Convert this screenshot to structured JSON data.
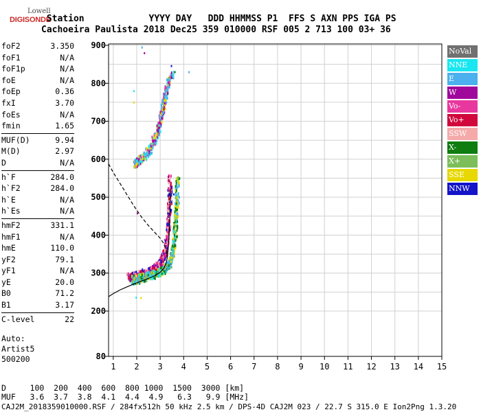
{
  "logo": {
    "line1": "Lowell",
    "line2": "DIGISONDE"
  },
  "header": {
    "labels": [
      "Station",
      "YYYY",
      "DAY",
      "DDD",
      "HHMMSS",
      "P1",
      "FFS",
      "S",
      "AXN",
      "PPS",
      "IGA",
      "PS"
    ],
    "values": [
      "Cachoeira Paulista",
      "2018",
      "Dec25",
      "359",
      "010000",
      "RSF",
      "005",
      "2",
      "713",
      "100",
      "03+",
      "36"
    ]
  },
  "parameters": [
    {
      "group": [
        {
          "name": "foF2",
          "value": "3.350"
        },
        {
          "name": "foF1",
          "value": "N/A"
        },
        {
          "name": "foF1p",
          "value": "N/A"
        },
        {
          "name": "foE",
          "value": "N/A"
        },
        {
          "name": "foEp",
          "value": "0.36"
        },
        {
          "name": "fxI",
          "value": "3.70"
        },
        {
          "name": "foEs",
          "value": "N/A"
        },
        {
          "name": "fmin",
          "value": "1.65"
        }
      ]
    },
    {
      "group": [
        {
          "name": "MUF(D)",
          "value": "9.94"
        },
        {
          "name": "M(D)",
          "value": "2.97"
        },
        {
          "name": "D",
          "value": "N/A"
        }
      ]
    },
    {
      "group": [
        {
          "name": "h`F",
          "value": "284.0"
        },
        {
          "name": "h`F2",
          "value": "284.0"
        },
        {
          "name": "h`E",
          "value": "N/A"
        },
        {
          "name": "h`Es",
          "value": "N/A"
        }
      ]
    },
    {
      "group": [
        {
          "name": "hmF2",
          "value": "331.1"
        },
        {
          "name": "hmF1",
          "value": "N/A"
        },
        {
          "name": "hmE",
          "value": "110.0"
        },
        {
          "name": "yF2",
          "value": "79.1"
        },
        {
          "name": "yF1",
          "value": "N/A"
        },
        {
          "name": "yE",
          "value": "20.0"
        },
        {
          "name": "B0",
          "value": "71.2"
        },
        {
          "name": "B1",
          "value": "3.17"
        }
      ]
    },
    {
      "group": [
        {
          "name": "C-level",
          "value": "22"
        }
      ]
    }
  ],
  "autoscaling": [
    "Auto:",
    "Artist5",
    "500200"
  ],
  "legend": [
    {
      "label": "NoVal",
      "color": "#707070"
    },
    {
      "label": "NNE",
      "color": "#19e6f0"
    },
    {
      "label": "E",
      "color": "#4ab0ee"
    },
    {
      "label": "W",
      "color": "#a0089c"
    },
    {
      "label": "Vo-",
      "color": "#e8389e"
    },
    {
      "label": "Vo+",
      "color": "#d0083c"
    },
    {
      "label": "SSW",
      "color": "#f5a9a9"
    },
    {
      "label": "X-",
      "color": "#0f7d0f"
    },
    {
      "label": "X+",
      "color": "#7cbe5a"
    },
    {
      "label": "SSE",
      "color": "#e6d800"
    },
    {
      "label": "NNW",
      "color": "#1414c8"
    }
  ],
  "mufTable": {
    "dLabel": "D",
    "mufLabel": "MUF",
    "distances": [
      "100",
      "200",
      "400",
      "600",
      "800",
      "1000",
      "1500",
      "3000"
    ],
    "distUnit": "[km]",
    "mufs": [
      "3.6",
      "3.7",
      "3.8",
      "4.1",
      "4.4",
      "4.9",
      "6.3",
      "9.9"
    ],
    "mufUnit": "[MHz]"
  },
  "footer": "CAJ2M_2018359010000.RSF / 284fx512h 50 kHz 2.5 km / DPS-4D CAJ2M 023 / 22.7 S 315.0 E Ion2Png 1.3.20",
  "chart_data": {
    "type": "scatter",
    "xlim": [
      0.8,
      15
    ],
    "ylim": [
      80,
      900
    ],
    "xticks": [
      1,
      2,
      3,
      4,
      5,
      6,
      7,
      8,
      9,
      10,
      11,
      12,
      13,
      14,
      15
    ],
    "yticks": [
      80,
      200,
      300,
      400,
      500,
      600,
      700,
      800,
      900
    ],
    "xlabel": "",
    "ylabel": "",
    "grid": true,
    "echo_traces": [
      {
        "name": "O-trace F2 (lower)",
        "colors": [
          "#a0089c",
          "#e8389e",
          "#d0083c",
          "#1414c8",
          "#f5a9a9"
        ],
        "points": [
          [
            1.65,
            292
          ],
          [
            1.8,
            294
          ],
          [
            2.0,
            297
          ],
          [
            2.2,
            300
          ],
          [
            2.4,
            304
          ],
          [
            2.6,
            310
          ],
          [
            2.8,
            318
          ],
          [
            3.0,
            330
          ],
          [
            3.1,
            340
          ],
          [
            3.2,
            360
          ],
          [
            3.3,
            400
          ],
          [
            3.35,
            450
          ],
          [
            3.38,
            500
          ],
          [
            3.4,
            560
          ]
        ]
      },
      {
        "name": "X-trace F2 (lower)",
        "colors": [
          "#0f7d0f",
          "#7cbe5a",
          "#19e6f0",
          "#4ab0ee",
          "#e6d800"
        ],
        "points": [
          [
            1.8,
            285
          ],
          [
            2.0,
            287
          ],
          [
            2.2,
            290
          ],
          [
            2.5,
            295
          ],
          [
            2.8,
            300
          ],
          [
            3.0,
            306
          ],
          [
            3.2,
            315
          ],
          [
            3.4,
            330
          ],
          [
            3.5,
            350
          ],
          [
            3.6,
            400
          ],
          [
            3.65,
            450
          ],
          [
            3.7,
            500
          ],
          [
            3.72,
            560
          ]
        ]
      },
      {
        "name": "Multiple-hop trace",
        "colors": [
          "#a0089c",
          "#e8389e",
          "#4ab0ee",
          "#e6d800",
          "#19e6f0"
        ],
        "points": [
          [
            1.9,
            592
          ],
          [
            2.0,
            595
          ],
          [
            2.3,
            610
          ],
          [
            2.5,
            625
          ],
          [
            2.7,
            650
          ],
          [
            2.9,
            680
          ],
          [
            3.0,
            710
          ],
          [
            3.1,
            740
          ],
          [
            3.2,
            770
          ],
          [
            3.3,
            800
          ],
          [
            3.5,
            825
          ]
        ]
      }
    ],
    "scattered_points": [
      [
        2.2,
        897
      ],
      [
        2.3,
        882
      ],
      [
        1.85,
        782
      ],
      [
        1.85,
        752
      ],
      [
        3.45,
        848
      ],
      [
        3.6,
        832
      ],
      [
        4.2,
        832
      ],
      [
        2.0,
        460
      ],
      [
        1.95,
        238
      ],
      [
        2.15,
        237
      ],
      [
        3.55,
        510
      ],
      [
        3.65,
        545
      ]
    ],
    "profile_curves": [
      {
        "name": "solid-profile",
        "points": [
          [
            0.8,
            238
          ],
          [
            1.0,
            246
          ],
          [
            1.3,
            256
          ],
          [
            1.6,
            264
          ],
          [
            1.9,
            272
          ],
          [
            2.2,
            279
          ],
          [
            2.5,
            286
          ],
          [
            2.8,
            294
          ],
          [
            3.0,
            302
          ],
          [
            3.15,
            312
          ],
          [
            3.25,
            326
          ],
          [
            3.3,
            340
          ],
          [
            3.35,
            372
          ],
          [
            3.4,
            420
          ],
          [
            3.42,
            470
          ],
          [
            3.43,
            520
          ]
        ]
      },
      {
        "name": "dashed-profile",
        "points": [
          [
            0.8,
            588
          ],
          [
            1.0,
            565
          ],
          [
            1.3,
            535
          ],
          [
            1.6,
            505
          ],
          [
            1.9,
            475
          ],
          [
            2.2,
            448
          ],
          [
            2.5,
            425
          ],
          [
            2.8,
            405
          ],
          [
            3.0,
            392
          ],
          [
            3.15,
            378
          ],
          [
            3.25,
            362
          ],
          [
            3.3,
            340
          ]
        ]
      }
    ]
  }
}
